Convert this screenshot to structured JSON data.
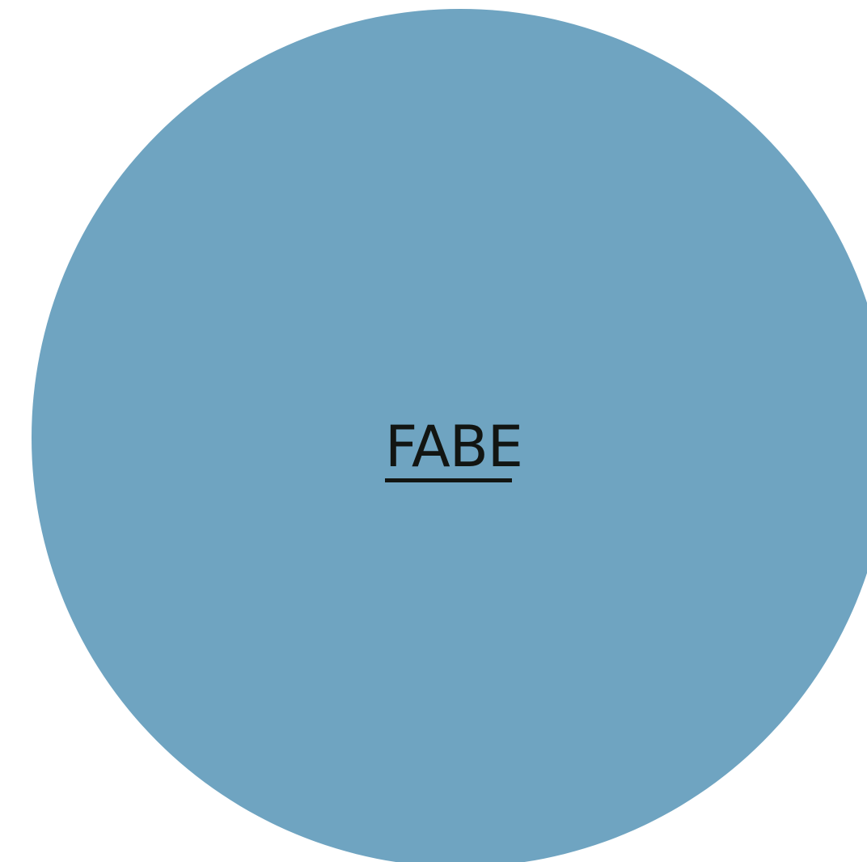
{
  "page": {
    "background_color": "#ffffff",
    "circle_color": "#6fa4c1",
    "text_color": "#121512"
  },
  "logo": {
    "text": "FABE",
    "underlined": true
  }
}
